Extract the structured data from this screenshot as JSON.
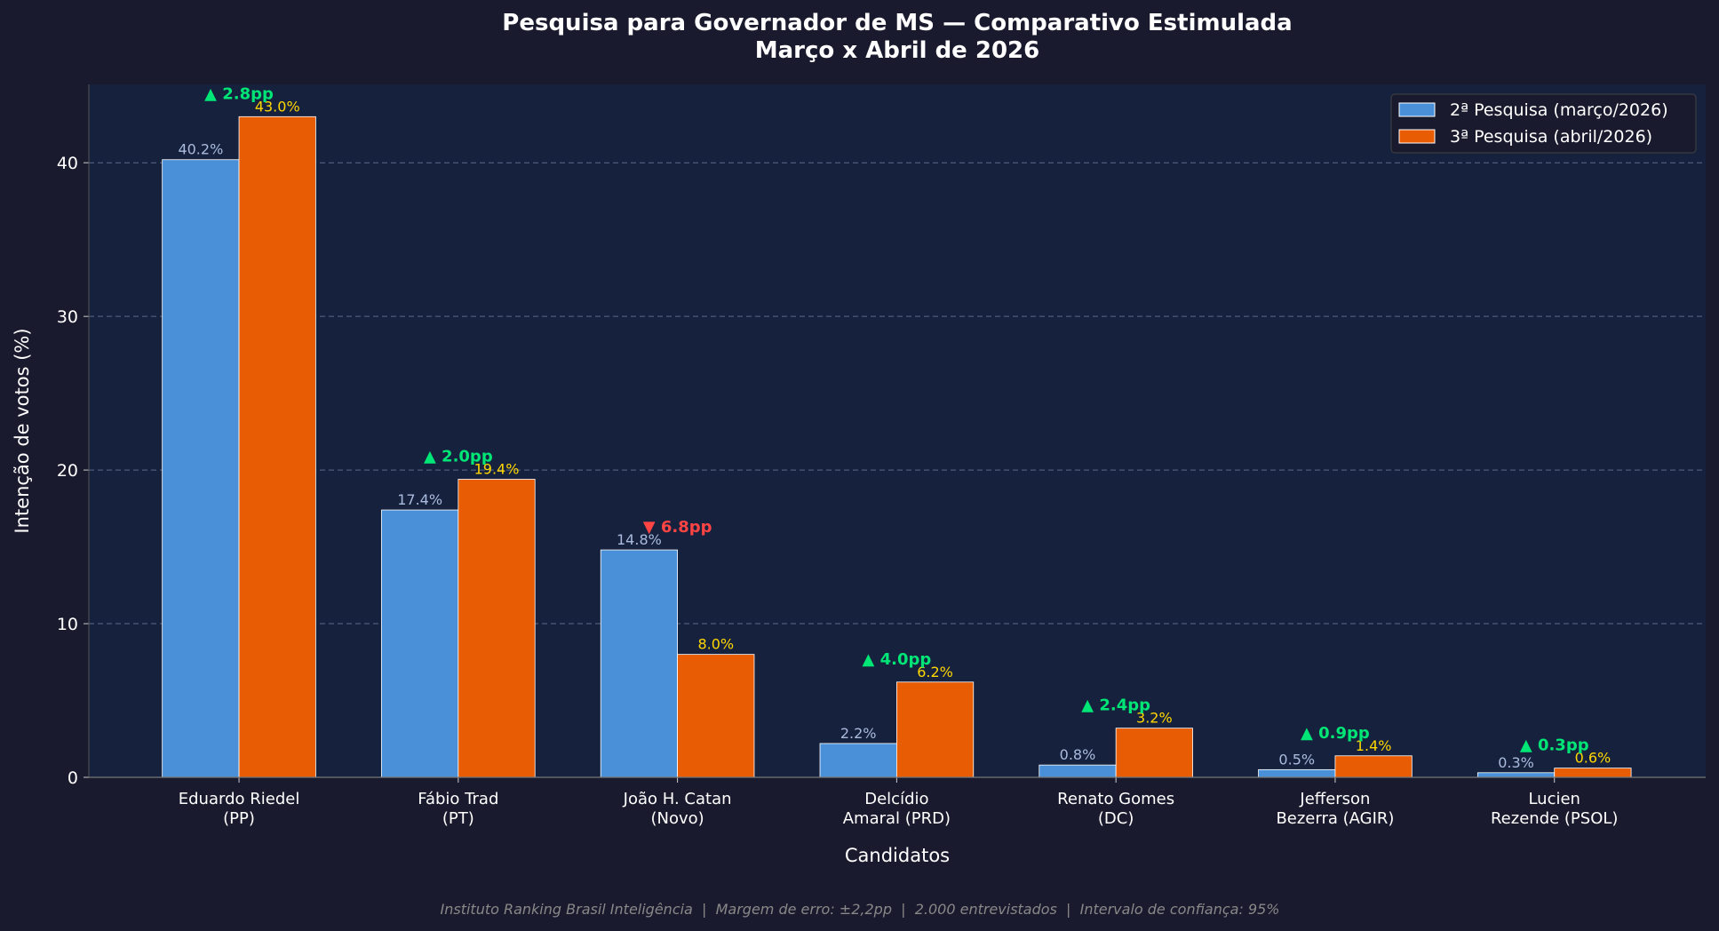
{
  "chart_data": {
    "type": "bar",
    "title": "Pesquisa para Governador de MS — Comparativo Estimulada",
    "subtitle": "Março x Abril de 2026",
    "xlabel": "Candidatos",
    "ylabel": "Intenção de votos (%)",
    "ylim": [
      0,
      45.1
    ],
    "yticks": [
      0,
      10,
      20,
      30,
      40
    ],
    "grid": "horizontal dashed",
    "legend_position": "top-right",
    "categories": [
      [
        "Eduardo Riedel",
        "(PP)"
      ],
      [
        "Fábio Trad",
        "(PT)"
      ],
      [
        "João H. Catan",
        "(Novo)"
      ],
      [
        "Delcídio",
        "Amaral (PRD)"
      ],
      [
        "Renato Gomes",
        "(DC)"
      ],
      [
        "Jefferson",
        "Bezerra (AGIR)"
      ],
      [
        "Lucien",
        "Rezende (PSOL)"
      ]
    ],
    "series": [
      {
        "name": "2ª Pesquisa (março/2026)",
        "color": "#4a90d9",
        "label_color": "#aabbdd",
        "values": [
          40.2,
          17.4,
          14.8,
          2.2,
          0.8,
          0.5,
          0.3
        ],
        "labels": [
          "40.2%",
          "17.4%",
          "14.8%",
          "2.2%",
          "0.8%",
          "0.5%",
          "0.3%"
        ]
      },
      {
        "name": "3ª Pesquisa (abril/2026)",
        "color": "#e85d04",
        "label_color": "#ffd700",
        "values": [
          43.0,
          19.4,
          8.0,
          6.2,
          3.2,
          1.4,
          0.6
        ],
        "labels": [
          "43.0%",
          "19.4%",
          "8.0%",
          "6.2%",
          "3.2%",
          "1.4%",
          "0.6%"
        ]
      }
    ],
    "changes": [
      {
        "text": "▲ 2.8pp",
        "color": "#00e676"
      },
      {
        "text": "▲ 2.0pp",
        "color": "#00e676"
      },
      {
        "text": "▼ 6.8pp",
        "color": "#ff4444"
      },
      {
        "text": "▲ 4.0pp",
        "color": "#00e676"
      },
      {
        "text": "▲ 2.4pp",
        "color": "#00e676"
      },
      {
        "text": "▲ 0.9pp",
        "color": "#00e676"
      },
      {
        "text": "▲ 0.3pp",
        "color": "#00e676"
      }
    ],
    "footnote": "Instituto Ranking Brasil Inteligência  |  Margem de erro: ±2,2pp  |  2.000 entrevistados  |  Intervalo de confiança: 95%"
  },
  "colors": {
    "background": "#1a1a2e",
    "plot_background": "#16213e"
  }
}
